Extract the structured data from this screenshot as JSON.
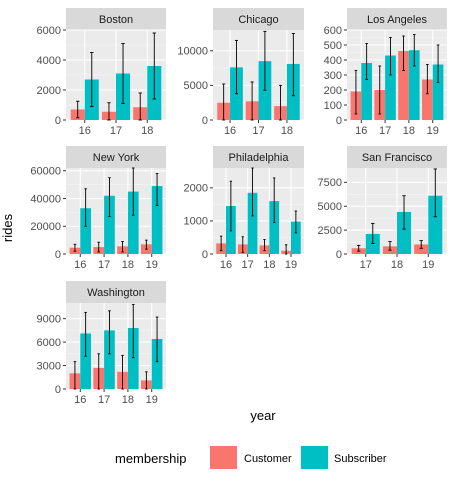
{
  "chart_data": {
    "type": "bar",
    "xlabel": "year",
    "ylabel": "rides",
    "legend": {
      "title": "membership",
      "position": "bottom",
      "entries": [
        {
          "name": "Customer",
          "color": "#F8766D"
        },
        {
          "name": "Subscriber",
          "color": "#00BFC4"
        }
      ]
    },
    "grid": true,
    "panels": [
      {
        "title": "Boston",
        "ylim": [
          0,
          6000
        ],
        "yticks": [
          0,
          2000,
          4000,
          6000
        ],
        "categories": [
          "16",
          "17",
          "18"
        ],
        "series": [
          {
            "name": "Customer",
            "values": [
              700,
              550,
              850
            ],
            "err_low": [
              150,
              0,
              0
            ],
            "err_high": [
              1250,
              1150,
              1800
            ]
          },
          {
            "name": "Subscriber",
            "values": [
              2700,
              3100,
              3600
            ],
            "err_low": [
              900,
              1100,
              1400
            ],
            "err_high": [
              4500,
              5100,
              5800
            ]
          }
        ]
      },
      {
        "title": "Chicago",
        "ylim": [
          0,
          13000
        ],
        "yticks": [
          0,
          5000,
          10000
        ],
        "categories": [
          "16",
          "17",
          "18"
        ],
        "series": [
          {
            "name": "Customer",
            "values": [
              2500,
              2700,
              2000
            ],
            "err_low": [
              0,
              0,
              0
            ],
            "err_high": [
              5200,
              5500,
              5000
            ]
          },
          {
            "name": "Subscriber",
            "values": [
              7600,
              8500,
              8100
            ],
            "err_low": [
              3800,
              4300,
              3500
            ],
            "err_high": [
              11500,
              12800,
              12500
            ]
          }
        ]
      },
      {
        "title": "Los Angeles",
        "ylim": [
          0,
          600
        ],
        "yticks": [
          0,
          100,
          200,
          300,
          400,
          500,
          600
        ],
        "categories": [
          "16",
          "17",
          "18",
          "19"
        ],
        "series": [
          {
            "name": "Customer",
            "values": [
              190,
              200,
              460,
              270
            ],
            "err_low": [
              40,
              40,
              330,
              175
            ],
            "err_high": [
              330,
              360,
              560,
              370
            ]
          },
          {
            "name": "Subscriber",
            "values": [
              380,
              430,
              465,
              370
            ],
            "err_low": [
              270,
              300,
              360,
              250
            ],
            "err_high": [
              510,
              550,
              570,
              500
            ]
          }
        ]
      },
      {
        "title": "New York",
        "ylim": [
          0,
          62000
        ],
        "yticks": [
          0,
          20000,
          40000,
          60000
        ],
        "categories": [
          "16",
          "17",
          "18",
          "19"
        ],
        "series": [
          {
            "name": "Customer",
            "values": [
              4500,
              5000,
              5500,
              7000
            ],
            "err_low": [
              2000,
              1500,
              1500,
              3500
            ],
            "err_high": [
              7000,
              8500,
              9000,
              10000
            ]
          },
          {
            "name": "Subscriber",
            "values": [
              33000,
              42000,
              45000,
              49000
            ],
            "err_low": [
              20000,
              27000,
              28000,
              35000
            ],
            "err_high": [
              47000,
              55000,
              62000,
              58000
            ]
          }
        ]
      },
      {
        "title": "Philadelphia",
        "ylim": [
          0,
          2600
        ],
        "yticks": [
          0,
          1000,
          2000
        ],
        "categories": [
          "16",
          "17",
          "18",
          "19"
        ],
        "series": [
          {
            "name": "Customer",
            "values": [
              320,
              290,
              260,
              100
            ],
            "err_low": [
              100,
              50,
              100,
              0
            ],
            "err_high": [
              540,
              520,
              440,
              280
            ]
          },
          {
            "name": "Subscriber",
            "values": [
              1450,
              1850,
              1600,
              980
            ],
            "err_low": [
              700,
              1150,
              950,
              640
            ],
            "err_high": [
              2200,
              2600,
              2300,
              1300
            ]
          }
        ]
      },
      {
        "title": "San Francisco",
        "ylim": [
          0,
          9000
        ],
        "yticks": [
          0,
          2500,
          5000,
          7500
        ],
        "categories": [
          "17",
          "18",
          "19"
        ],
        "series": [
          {
            "name": "Customer",
            "values": [
              600,
              800,
              1000
            ],
            "err_low": [
              300,
              400,
              600
            ],
            "err_high": [
              900,
              1300,
              1400
            ]
          },
          {
            "name": "Subscriber",
            "values": [
              2100,
              4400,
              6100
            ],
            "err_low": [
              1100,
              2600,
              3900
            ],
            "err_high": [
              3200,
              6100,
              8900
            ]
          }
        ]
      },
      {
        "title": "Washington",
        "ylim": [
          0,
          11000
        ],
        "yticks": [
          0,
          3000,
          6000,
          9000
        ],
        "categories": [
          "16",
          "17",
          "18",
          "19"
        ],
        "series": [
          {
            "name": "Customer",
            "values": [
              2000,
              2700,
              2200,
              1100
            ],
            "err_low": [
              0,
              0,
              0,
              0
            ],
            "err_high": [
              3500,
              4500,
              4300,
              2200
            ]
          },
          {
            "name": "Subscriber",
            "values": [
              7100,
              7500,
              7800,
              6400
            ],
            "err_low": [
              4200,
              4500,
              4000,
              3500
            ],
            "err_high": [
              9800,
              10000,
              10800,
              9200
            ]
          }
        ]
      }
    ]
  }
}
